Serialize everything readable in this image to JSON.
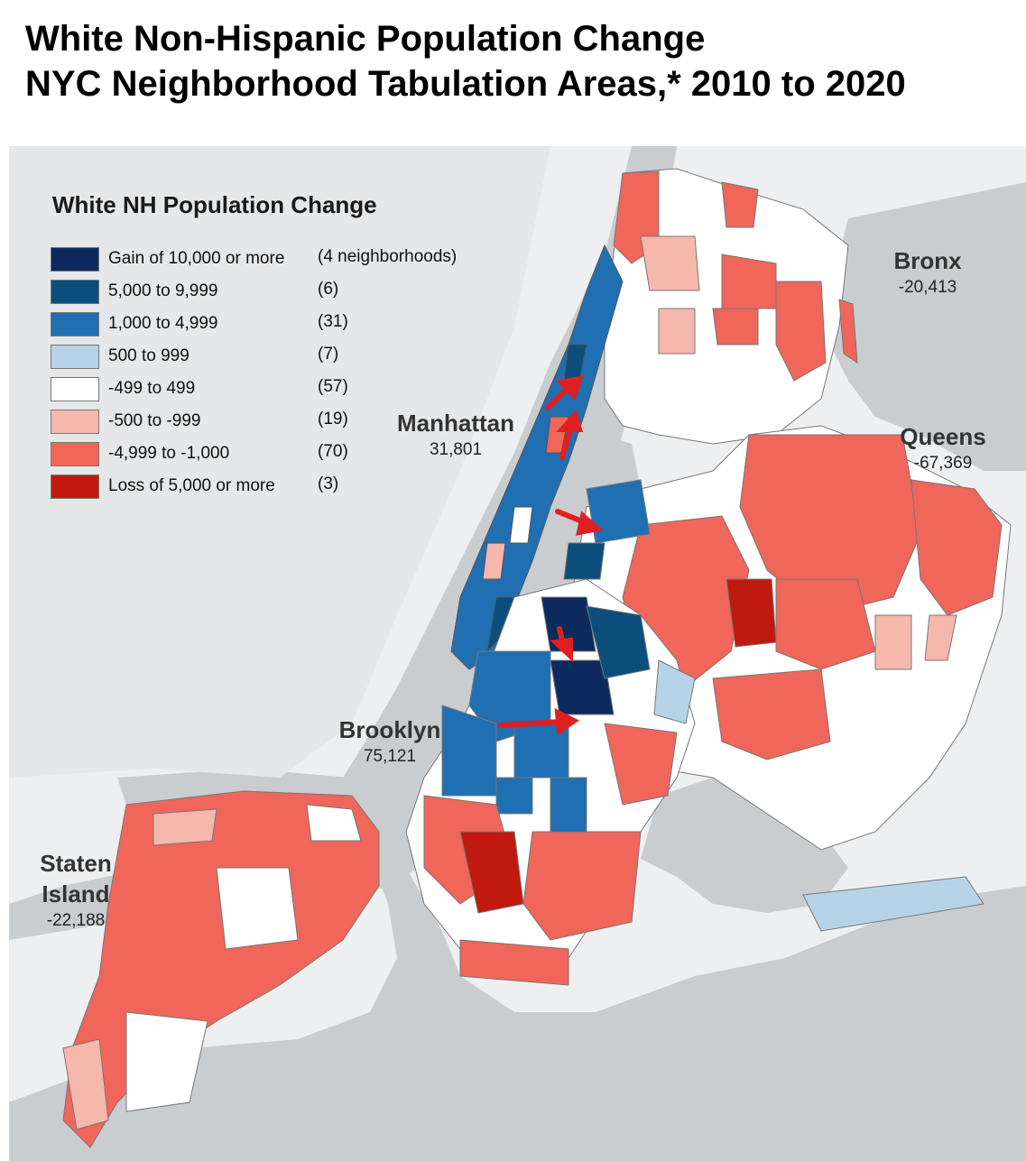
{
  "title_line1": "White Non-Hispanic Population Change",
  "title_line2": "NYC Neighborhood Tabulation Areas,* 2010 to 2020",
  "legend": {
    "title": "White NH Population Change",
    "items": [
      {
        "label": "Gain of 10,000 or more",
        "count": "(4 neighborhoods)",
        "color": "#0d2a5e"
      },
      {
        "label": "5,000 to 9,999",
        "count": "(6)",
        "color": "#0b4e7c"
      },
      {
        "label": "1,000 to 4,999",
        "count": "(31)",
        "color": "#1f6fb2"
      },
      {
        "label": "500 to 999",
        "count": "(7)",
        "color": "#b7d3e8"
      },
      {
        "label": "-499 to 499",
        "count": "(57)",
        "color": "#ffffff"
      },
      {
        "label": "-500 to -999",
        "count": "(19)",
        "color": "#f6b7ad"
      },
      {
        "label": "-4,999 to -1,000",
        "count": "(70)",
        "color": "#f0665a"
      },
      {
        "label": "Loss of 5,000 or more",
        "count": "(3)",
        "color": "#c01a10"
      }
    ]
  },
  "boroughs": [
    {
      "name": "Bronx",
      "value": "-20,413"
    },
    {
      "name": "Manhattan",
      "value": "31,801"
    },
    {
      "name": "Queens",
      "value": "-67,369"
    },
    {
      "name": "Brooklyn",
      "value": "75,121"
    },
    {
      "name": "Staten Island",
      "value": "-22,188"
    }
  ],
  "colors": {
    "water": "#c9cdcf",
    "land": "#eeeff0",
    "arrow": "#e02020"
  }
}
